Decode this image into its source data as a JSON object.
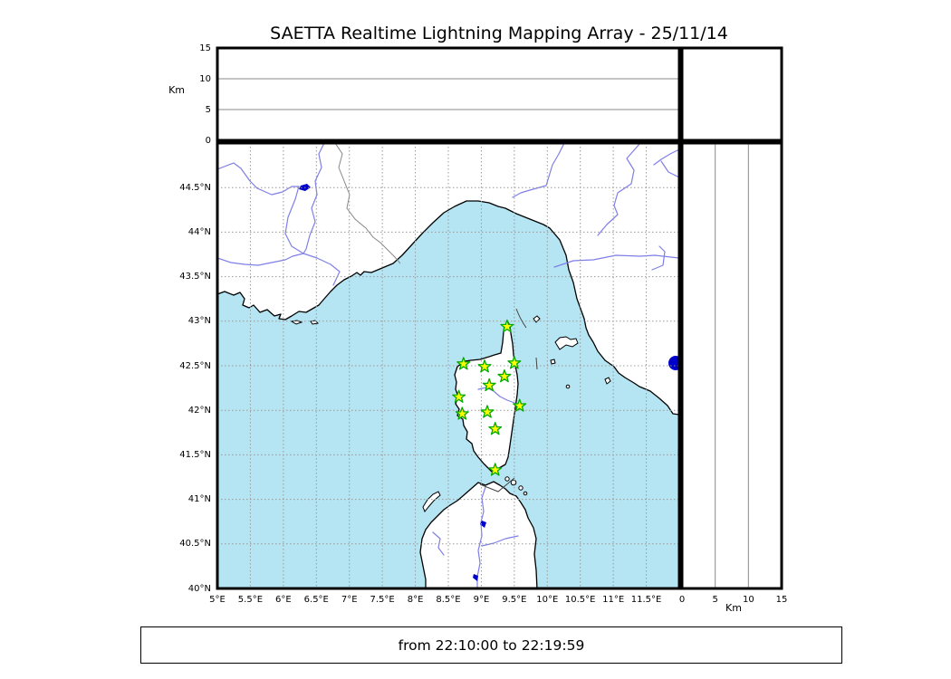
{
  "title": "SAETTA Realtime Lightning Mapping Array - 25/11/14",
  "footer": {
    "text": "from 22:10:00 to 22:19:59"
  },
  "alt_axis": {
    "label": "Km",
    "range": [
      0,
      15
    ],
    "ticks": [
      {
        "v": 0,
        "label": "0"
      },
      {
        "v": 5,
        "label": "5"
      },
      {
        "v": 10,
        "label": "10"
      },
      {
        "v": 15,
        "label": "15"
      }
    ],
    "gridlines": [
      5,
      10
    ]
  },
  "map": {
    "lon_min": 5,
    "lon_max": 12,
    "lat_min": 40,
    "lat_max": 45,
    "lon_ticks": [
      {
        "v": 5,
        "label": "5°E"
      },
      {
        "v": 5.5,
        "label": "5.5°E"
      },
      {
        "v": 6,
        "label": "6°E"
      },
      {
        "v": 6.5,
        "label": "6.5°E"
      },
      {
        "v": 7,
        "label": "7°E"
      },
      {
        "v": 7.5,
        "label": "7.5°E"
      },
      {
        "v": 8,
        "label": "8°E"
      },
      {
        "v": 8.5,
        "label": "8.5°E"
      },
      {
        "v": 9,
        "label": "9°E"
      },
      {
        "v": 9.5,
        "label": "9.5°E"
      },
      {
        "v": 10,
        "label": "10°E"
      },
      {
        "v": 10.5,
        "label": "10.5°E"
      },
      {
        "v": 11,
        "label": "11°E"
      },
      {
        "v": 11.5,
        "label": "11.5°E"
      }
    ],
    "lat_ticks": [
      {
        "v": 44.5,
        "label": "44.5°N"
      },
      {
        "v": 44,
        "label": "44°N"
      },
      {
        "v": 43.5,
        "label": "43.5°N"
      },
      {
        "v": 43,
        "label": "43°N"
      },
      {
        "v": 42.5,
        "label": "42.5°N"
      },
      {
        "v": 42,
        "label": "42°N"
      },
      {
        "v": 41.5,
        "label": "41.5°N"
      },
      {
        "v": 41,
        "label": "41°N"
      },
      {
        "v": 40.5,
        "label": "40.5°N"
      },
      {
        "v": 40,
        "label": "40°N"
      }
    ],
    "stations": [
      {
        "lon": 9.39,
        "lat": 42.94
      },
      {
        "lon": 8.73,
        "lat": 42.52
      },
      {
        "lon": 9.05,
        "lat": 42.49
      },
      {
        "lon": 9.5,
        "lat": 42.53
      },
      {
        "lon": 9.35,
        "lat": 42.38
      },
      {
        "lon": 9.12,
        "lat": 42.28
      },
      {
        "lon": 8.66,
        "lat": 42.15
      },
      {
        "lon": 9.58,
        "lat": 42.05
      },
      {
        "lon": 8.71,
        "lat": 41.96
      },
      {
        "lon": 9.09,
        "lat": 41.98
      },
      {
        "lon": 9.21,
        "lat": 41.79
      },
      {
        "lon": 9.21,
        "lat": 41.33
      }
    ]
  },
  "colors": {
    "sea": "#b5e5f2",
    "land": "#ffffff",
    "coast": "#000000",
    "river": "#7f7fe8",
    "lake": "#0000cc",
    "grid": "#999999",
    "star_fill": "#ffff00",
    "star_edge": "#00aa00",
    "frame": "#000000",
    "border_line": "#888888"
  }
}
